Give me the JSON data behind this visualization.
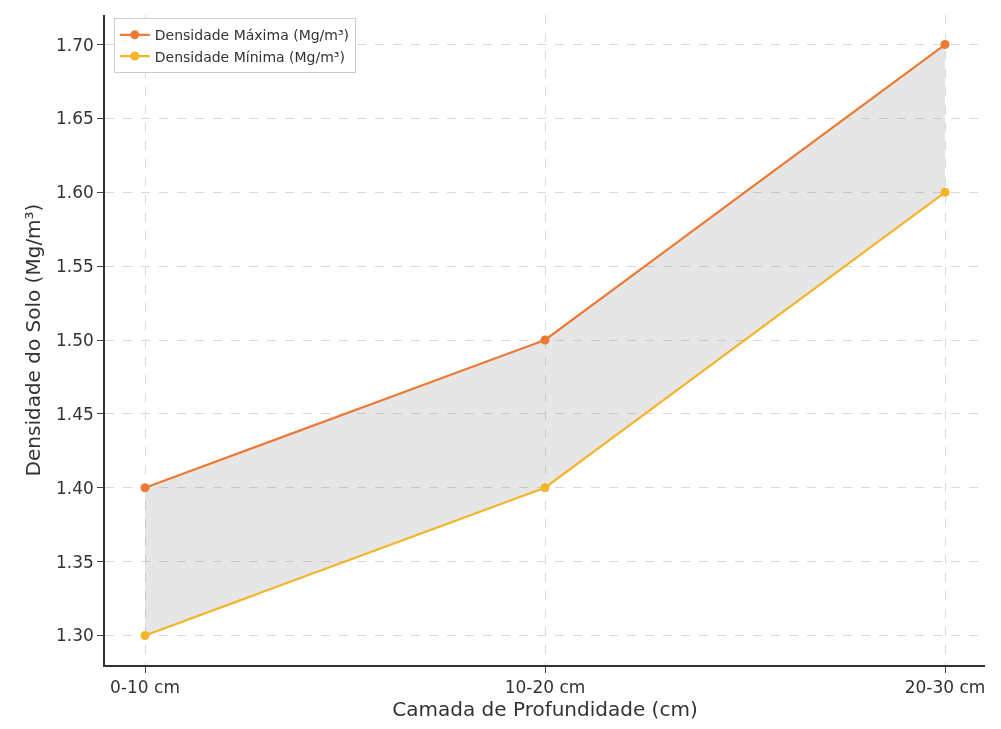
{
  "chart_data": {
    "type": "line",
    "xlabel": "Camada de Profundidade (cm)",
    "ylabel": "Densidade do Solo (Mg/m³)",
    "categories": [
      "0-10 cm",
      "10-20 cm",
      "20-30 cm"
    ],
    "series": [
      {
        "name": "Densidade Mínima (Mg/m³)",
        "color": "#f4b52a",
        "values": [
          1.3,
          1.4,
          1.6
        ]
      },
      {
        "name": "Densidade Máxima (Mg/m³)",
        "color": "#ec7a35",
        "values": [
          1.4,
          1.5,
          1.7
        ],
        "lower": [
          1.3,
          1.4,
          1.6
        ],
        "upper": [
          1.4,
          1.5,
          1.7
        ]
      }
    ],
    "ylim": [
      1.28,
      1.72
    ],
    "yticks": [
      {
        "value": 1.3,
        "label": "1.30"
      },
      {
        "value": 1.35,
        "label": "1.35"
      },
      {
        "value": 1.4,
        "label": "1.40"
      },
      {
        "value": 1.45,
        "label": "1.45"
      },
      {
        "value": 1.5,
        "label": "1.50"
      },
      {
        "value": 1.55,
        "label": "1.55"
      },
      {
        "value": 1.6,
        "label": "1.60"
      },
      {
        "value": 1.65,
        "label": "1.65"
      },
      {
        "value": 1.7,
        "label": "1.70"
      }
    ],
    "grid": true,
    "legend": "top left",
    "marker": "circle",
    "line_style": "solid"
  }
}
